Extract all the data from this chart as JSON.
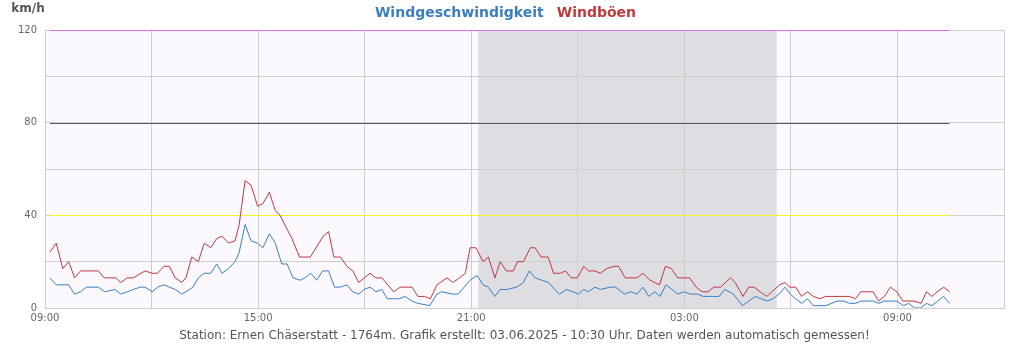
{
  "chart_data": {
    "type": "line",
    "ylabel": "km/h",
    "xlim": [
      "2025-06-02T09:00",
      "2025-06-03T12:00"
    ],
    "xticks": [
      {
        "value": "2025-06-02T09:00",
        "label": "09:00"
      },
      {
        "value": "2025-06-02T12:00",
        "label": null
      },
      {
        "value": "2025-06-02T15:00",
        "label": "15:00"
      },
      {
        "value": "2025-06-02T18:00",
        "label": null
      },
      {
        "value": "2025-06-02T21:00",
        "label": "21:00"
      },
      {
        "value": "2025-06-03T00:00",
        "label": null
      },
      {
        "value": "2025-06-03T03:00",
        "label": "03:00"
      },
      {
        "value": "2025-06-03T06:00",
        "label": null
      },
      {
        "value": "2025-06-03T09:00",
        "label": "09:00"
      },
      {
        "value": "2025-06-03T12:00",
        "label": null
      }
    ],
    "ylim": [
      0,
      120
    ],
    "yticks": [
      0,
      {
        "value": 20,
        "label": null
      },
      40,
      {
        "value": 60,
        "label": null
      },
      80,
      {
        "value": 100,
        "label": null
      },
      120
    ],
    "grid": true,
    "legend": "top",
    "marker": "none",
    "line_style": "solid",
    "ref_lines": [
      {
        "axis": "y",
        "value": 120,
        "color": "#e46ee8"
      },
      {
        "axis": "y",
        "value": 80,
        "color": "#5a5468"
      },
      {
        "axis": "y",
        "value": 40,
        "color": "#f5f52a"
      }
    ],
    "bands": [
      {
        "axis": "x",
        "from": "2025-06-02T21:12",
        "to": "2025-06-03T05:36",
        "color": "#dedee2"
      }
    ],
    "annotations": [
      "Station: Ernen Chäserstatt - 1764m. Grafik erstellt: 03.06.2025 - 10:30 Uhr. Daten werden automatisch gemessen!"
    ],
    "series": [
      {
        "name": "Windgeschwindigkeit",
        "color": "#3a7fc1",
        "x": [
          "2025-06-02T09:08",
          "2025-06-02T09:19",
          "2025-06-02T09:40",
          "2025-06-02T09:50",
          "2025-06-02T10:00",
          "2025-06-02T10:10",
          "2025-06-02T10:19",
          "2025-06-02T10:30",
          "2025-06-02T10:41",
          "2025-06-02T10:58",
          "2025-06-02T11:08",
          "2025-06-02T11:19",
          "2025-06-02T11:29",
          "2025-06-02T11:41",
          "2025-06-02T11:49",
          "2025-06-02T12:01",
          "2025-06-02T12:10",
          "2025-06-02T12:21",
          "2025-06-02T12:30",
          "2025-06-02T12:40",
          "2025-06-02T12:51",
          "2025-06-02T12:58",
          "2025-06-02T13:10",
          "2025-06-02T13:19",
          "2025-06-02T13:29",
          "2025-06-02T13:40",
          "2025-06-02T13:50",
          "2025-06-02T13:59",
          "2025-06-02T14:10",
          "2025-06-02T14:21",
          "2025-06-02T14:28",
          "2025-06-02T14:38",
          "2025-06-02T14:48",
          "2025-06-02T14:59",
          "2025-06-02T15:08",
          "2025-06-02T15:19",
          "2025-06-02T15:29",
          "2025-06-02T15:40",
          "2025-06-02T15:49",
          "2025-06-02T15:59",
          "2025-06-02T16:11",
          "2025-06-02T16:19",
          "2025-06-02T16:29",
          "2025-06-02T16:39",
          "2025-06-02T16:49",
          "2025-06-02T16:59",
          "2025-06-02T17:09",
          "2025-06-02T17:19",
          "2025-06-02T17:30",
          "2025-06-02T17:40",
          "2025-06-02T17:50",
          "2025-06-02T17:59",
          "2025-06-02T18:09",
          "2025-06-02T18:19",
          "2025-06-02T18:29",
          "2025-06-02T18:38",
          "2025-06-02T18:49",
          "2025-06-02T18:59",
          "2025-06-02T19:08",
          "2025-06-02T19:20",
          "2025-06-02T19:30",
          "2025-06-02T19:50",
          "2025-06-02T20:02",
          "2025-06-02T20:10",
          "2025-06-02T20:29",
          "2025-06-02T20:38",
          "2025-06-02T20:58",
          "2025-06-02T21:10",
          "2025-06-02T21:20",
          "2025-06-02T21:29",
          "2025-06-02T21:40",
          "2025-06-02T21:49",
          "2025-06-02T22:01",
          "2025-06-02T22:17",
          "2025-06-02T22:28",
          "2025-06-02T22:38",
          "2025-06-02T22:48",
          "2025-06-02T22:59",
          "2025-06-02T23:11",
          "2025-06-02T23:21",
          "2025-06-02T23:29",
          "2025-06-02T23:41",
          "2025-06-02T23:52",
          "2025-06-03T00:01",
          "2025-06-03T00:10",
          "2025-06-03T00:18",
          "2025-06-03T00:29",
          "2025-06-03T00:38",
          "2025-06-03T00:55",
          "2025-06-03T01:04",
          "2025-06-03T01:19",
          "2025-06-03T01:29",
          "2025-06-03T01:40",
          "2025-06-03T01:50",
          "2025-06-03T02:00",
          "2025-06-03T02:10",
          "2025-06-03T02:19",
          "2025-06-03T02:29",
          "2025-06-03T02:39",
          "2025-06-03T02:49",
          "2025-06-03T02:59",
          "2025-06-03T03:10",
          "2025-06-03T03:22",
          "2025-06-03T03:32",
          "2025-06-03T03:43",
          "2025-06-03T03:59",
          "2025-06-03T04:08",
          "2025-06-03T04:23",
          "2025-06-03T04:38",
          "2025-06-03T04:49",
          "2025-06-03T05:00",
          "2025-06-03T05:10",
          "2025-06-03T05:20",
          "2025-06-03T05:30",
          "2025-06-03T05:40",
          "2025-06-03T05:50",
          "2025-06-03T05:59",
          "2025-06-03T06:08",
          "2025-06-03T06:18",
          "2025-06-03T06:28",
          "2025-06-03T06:38",
          "2025-06-03T06:59",
          "2025-06-03T07:18",
          "2025-06-03T07:29",
          "2025-06-03T07:39",
          "2025-06-03T07:49",
          "2025-06-03T07:59",
          "2025-06-03T08:10",
          "2025-06-03T08:19",
          "2025-06-03T08:28",
          "2025-06-03T08:38",
          "2025-06-03T08:59",
          "2025-06-03T09:10",
          "2025-06-03T09:19",
          "2025-06-03T09:29",
          "2025-06-03T09:39",
          "2025-06-03T09:49",
          "2025-06-03T09:58",
          "2025-06-03T10:08",
          "2025-06-03T10:18",
          "2025-06-03T10:28"
        ],
        "values": [
          13,
          10,
          10,
          6,
          7,
          9,
          9,
          9,
          7,
          8,
          6,
          7,
          8,
          9,
          9,
          7,
          9,
          10,
          9,
          8,
          6,
          7,
          9,
          13,
          15,
          15,
          19,
          15,
          17,
          20,
          24,
          36,
          29,
          28,
          26,
          32,
          28,
          19,
          19,
          13,
          12,
          13,
          15,
          12,
          16,
          16,
          9,
          9,
          10,
          7,
          6,
          8,
          9,
          7,
          8,
          4,
          4,
          4,
          5,
          3,
          2,
          1,
          6,
          7,
          6,
          6,
          12,
          14,
          10,
          9,
          5,
          8,
          8,
          9,
          11,
          16,
          13,
          12,
          11,
          8,
          6,
          8,
          7,
          6,
          8,
          7,
          9,
          8,
          9,
          9,
          6,
          7,
          6,
          9,
          5,
          7,
          5,
          10,
          8,
          6,
          7,
          6,
          6,
          5,
          5,
          5,
          8,
          6,
          1,
          3,
          5,
          4,
          3,
          4,
          6,
          9,
          6,
          4,
          2,
          4,
          1,
          1,
          3,
          3,
          2,
          2,
          3,
          3,
          3,
          2,
          3,
          3,
          1,
          2,
          0,
          0,
          2,
          1,
          3,
          5,
          2
        ]
      },
      {
        "name": "Windböen",
        "color": "#c0393b",
        "x": [
          "2025-06-02T09:08",
          "2025-06-02T09:19",
          "2025-06-02T09:30",
          "2025-06-02T09:40",
          "2025-06-02T09:50",
          "2025-06-02T10:00",
          "2025-06-02T10:30",
          "2025-06-02T10:40",
          "2025-06-02T11:00",
          "2025-06-02T11:08",
          "2025-06-02T11:19",
          "2025-06-02T11:29",
          "2025-06-02T11:49",
          "2025-06-02T12:01",
          "2025-06-02T12:10",
          "2025-06-02T12:21",
          "2025-06-02T12:30",
          "2025-06-02T12:40",
          "2025-06-02T12:51",
          "2025-06-02T12:58",
          "2025-06-02T13:08",
          "2025-06-02T13:19",
          "2025-06-02T13:29",
          "2025-06-02T13:40",
          "2025-06-02T13:50",
          "2025-06-02T13:59",
          "2025-06-02T14:10",
          "2025-06-02T14:21",
          "2025-06-02T14:28",
          "2025-06-02T14:38",
          "2025-06-02T14:48",
          "2025-06-02T14:59",
          "2025-06-02T15:08",
          "2025-06-02T15:19",
          "2025-06-02T15:29",
          "2025-06-02T15:37",
          "2025-06-02T15:57",
          "2025-06-02T16:10",
          "2025-06-02T16:28",
          "2025-06-02T16:50",
          "2025-06-02T16:59",
          "2025-06-02T17:08",
          "2025-06-02T17:19",
          "2025-06-02T17:30",
          "2025-06-02T17:40",
          "2025-06-02T17:50",
          "2025-06-02T18:09",
          "2025-06-02T18:19",
          "2025-06-02T18:29",
          "2025-06-02T18:49",
          "2025-06-02T19:00",
          "2025-06-02T19:20",
          "2025-06-02T19:30",
          "2025-06-02T19:41",
          "2025-06-02T19:51",
          "2025-06-02T20:02",
          "2025-06-02T20:19",
          "2025-06-02T20:29",
          "2025-06-02T20:40",
          "2025-06-02T20:50",
          "2025-06-02T20:58",
          "2025-06-02T21:08",
          "2025-06-02T21:20",
          "2025-06-02T21:29",
          "2025-06-02T21:40",
          "2025-06-02T21:49",
          "2025-06-02T21:59",
          "2025-06-02T22:11",
          "2025-06-02T22:18",
          "2025-06-02T22:28",
          "2025-06-02T22:40",
          "2025-06-02T22:48",
          "2025-06-02T22:58",
          "2025-06-02T23:10",
          "2025-06-02T23:19",
          "2025-06-02T23:31",
          "2025-06-02T23:39",
          "2025-06-02T23:49",
          "2025-06-02T23:59",
          "2025-06-03T00:10",
          "2025-06-03T00:18",
          "2025-06-03T00:29",
          "2025-06-03T00:38",
          "2025-06-03T00:49",
          "2025-06-03T01:01",
          "2025-06-03T01:09",
          "2025-06-03T01:20",
          "2025-06-03T01:40",
          "2025-06-03T01:50",
          "2025-06-03T02:02",
          "2025-06-03T02:18",
          "2025-06-03T02:28",
          "2025-06-03T02:38",
          "2025-06-03T02:49",
          "2025-06-03T03:09",
          "2025-06-03T03:20",
          "2025-06-03T03:30",
          "2025-06-03T03:40",
          "2025-06-03T03:50",
          "2025-06-03T04:01",
          "2025-06-03T04:18",
          "2025-06-03T04:26",
          "2025-06-03T04:39",
          "2025-06-03T04:49",
          "2025-06-03T04:58",
          "2025-06-03T05:08",
          "2025-06-03T05:19",
          "2025-06-03T05:28",
          "2025-06-03T05:41",
          "2025-06-03T05:50",
          "2025-06-03T05:58",
          "2025-06-03T06:08",
          "2025-06-03T06:18",
          "2025-06-03T06:28",
          "2025-06-03T06:38",
          "2025-06-03T06:49",
          "2025-06-03T06:59",
          "2025-06-03T07:39",
          "2025-06-03T07:49",
          "2025-06-03T07:58",
          "2025-06-03T08:19",
          "2025-06-03T08:28",
          "2025-06-03T08:38",
          "2025-06-03T08:48",
          "2025-06-03T08:59",
          "2025-06-03T09:09",
          "2025-06-03T09:28",
          "2025-06-03T09:40",
          "2025-06-03T09:49",
          "2025-06-03T09:58",
          "2025-06-03T10:07",
          "2025-06-03T10:18",
          "2025-06-03T10:28"
        ],
        "values": [
          24,
          28,
          17,
          20,
          13,
          16,
          16,
          13,
          13,
          11,
          13,
          13,
          16,
          15,
          15,
          18,
          18,
          13,
          11,
          13,
          22,
          20,
          28,
          26,
          30,
          31,
          28,
          29,
          36,
          55,
          53,
          44,
          45,
          50,
          42,
          40,
          30,
          22,
          22,
          31,
          33,
          22,
          22,
          18,
          16,
          11,
          15,
          13,
          13,
          7,
          9,
          9,
          5,
          5,
          4,
          10,
          13,
          11,
          13,
          15,
          26,
          26,
          20,
          22,
          13,
          20,
          16,
          16,
          20,
          20,
          26,
          26,
          22,
          22,
          15,
          15,
          16,
          13,
          13,
          18,
          16,
          16,
          15,
          17,
          18,
          18,
          13,
          13,
          15,
          12,
          10,
          18,
          17,
          13,
          13,
          9,
          7,
          7,
          9,
          9,
          13,
          11,
          5,
          9,
          9,
          7,
          5,
          7,
          10,
          11,
          9,
          9,
          5,
          7,
          5,
          4,
          5,
          5,
          4,
          7,
          7,
          3,
          5,
          9,
          7,
          3,
          3,
          2,
          7,
          5,
          7,
          9,
          7
        ]
      }
    ]
  }
}
